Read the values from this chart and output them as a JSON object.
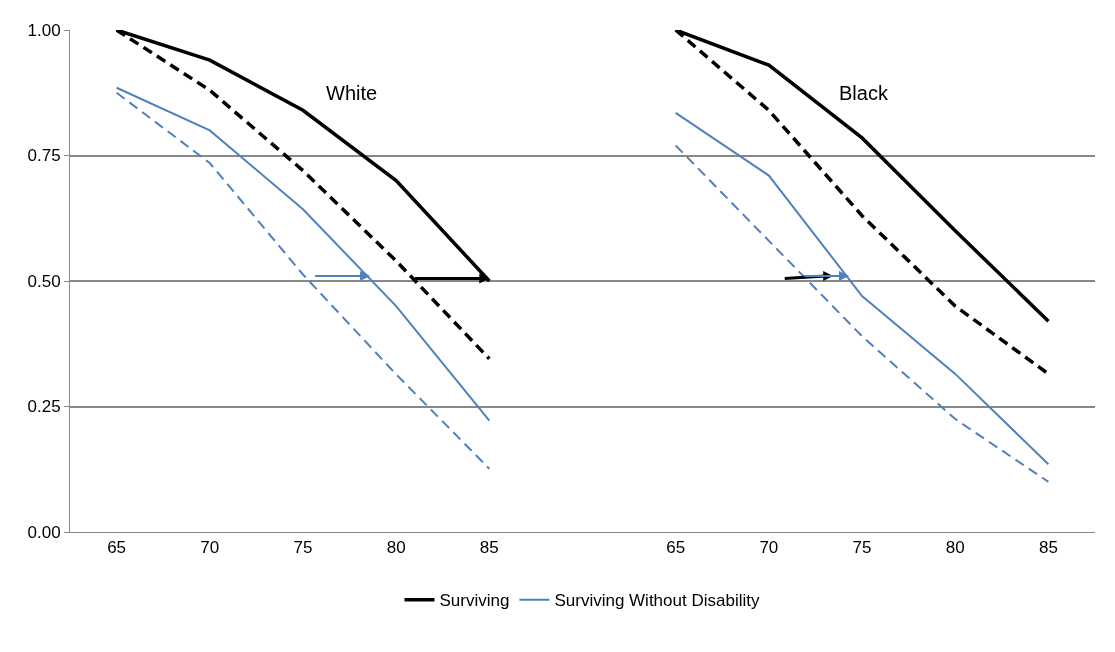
{
  "chart_data": {
    "type": "line",
    "annotations": [
      "White",
      "Black"
    ],
    "categories": [
      "65",
      "70",
      "75",
      "80",
      "85",
      null,
      "65",
      "70",
      "75",
      "80",
      "85"
    ],
    "ylim": [
      0,
      1
    ],
    "yticks": [
      {
        "value": 0,
        "label": "0.00"
      },
      {
        "value": 0.25,
        "label": "0.25"
      },
      {
        "value": 0.5,
        "label": "0.50"
      },
      {
        "value": 0.75,
        "label": "0.75"
      },
      {
        "value": 1,
        "label": "1.00"
      }
    ],
    "grid": "y",
    "legend": "bottom",
    "series": [
      {
        "name": "Surviving",
        "color": "#000000",
        "line_style": "solid",
        "values": [
          1.0,
          0.94,
          0.84,
          0.7,
          0.5,
          null,
          1.0,
          0.93,
          0.785,
          0.6,
          0.42
        ]
      },
      {
        "color": "#000000",
        "line_style": "dashed",
        "values": [
          1.0,
          0.88,
          0.72,
          0.54,
          0.345,
          null,
          1.0,
          0.84,
          0.63,
          0.45,
          0.315
        ]
      },
      {
        "name": "Surviving Without Disability",
        "color": "#4f81bd",
        "line_style": "solid",
        "values": [
          0.885,
          0.8,
          0.643,
          0.45,
          0.222,
          null,
          0.835,
          0.71,
          0.47,
          0.315,
          0.135
        ]
      },
      {
        "color": "#4f81bd",
        "line_style": "dashed",
        "values": [
          0.875,
          0.735,
          0.513,
          0.314,
          0.126,
          null,
          0.77,
          0.58,
          0.39,
          0.225,
          0.1
        ]
      }
    ]
  }
}
